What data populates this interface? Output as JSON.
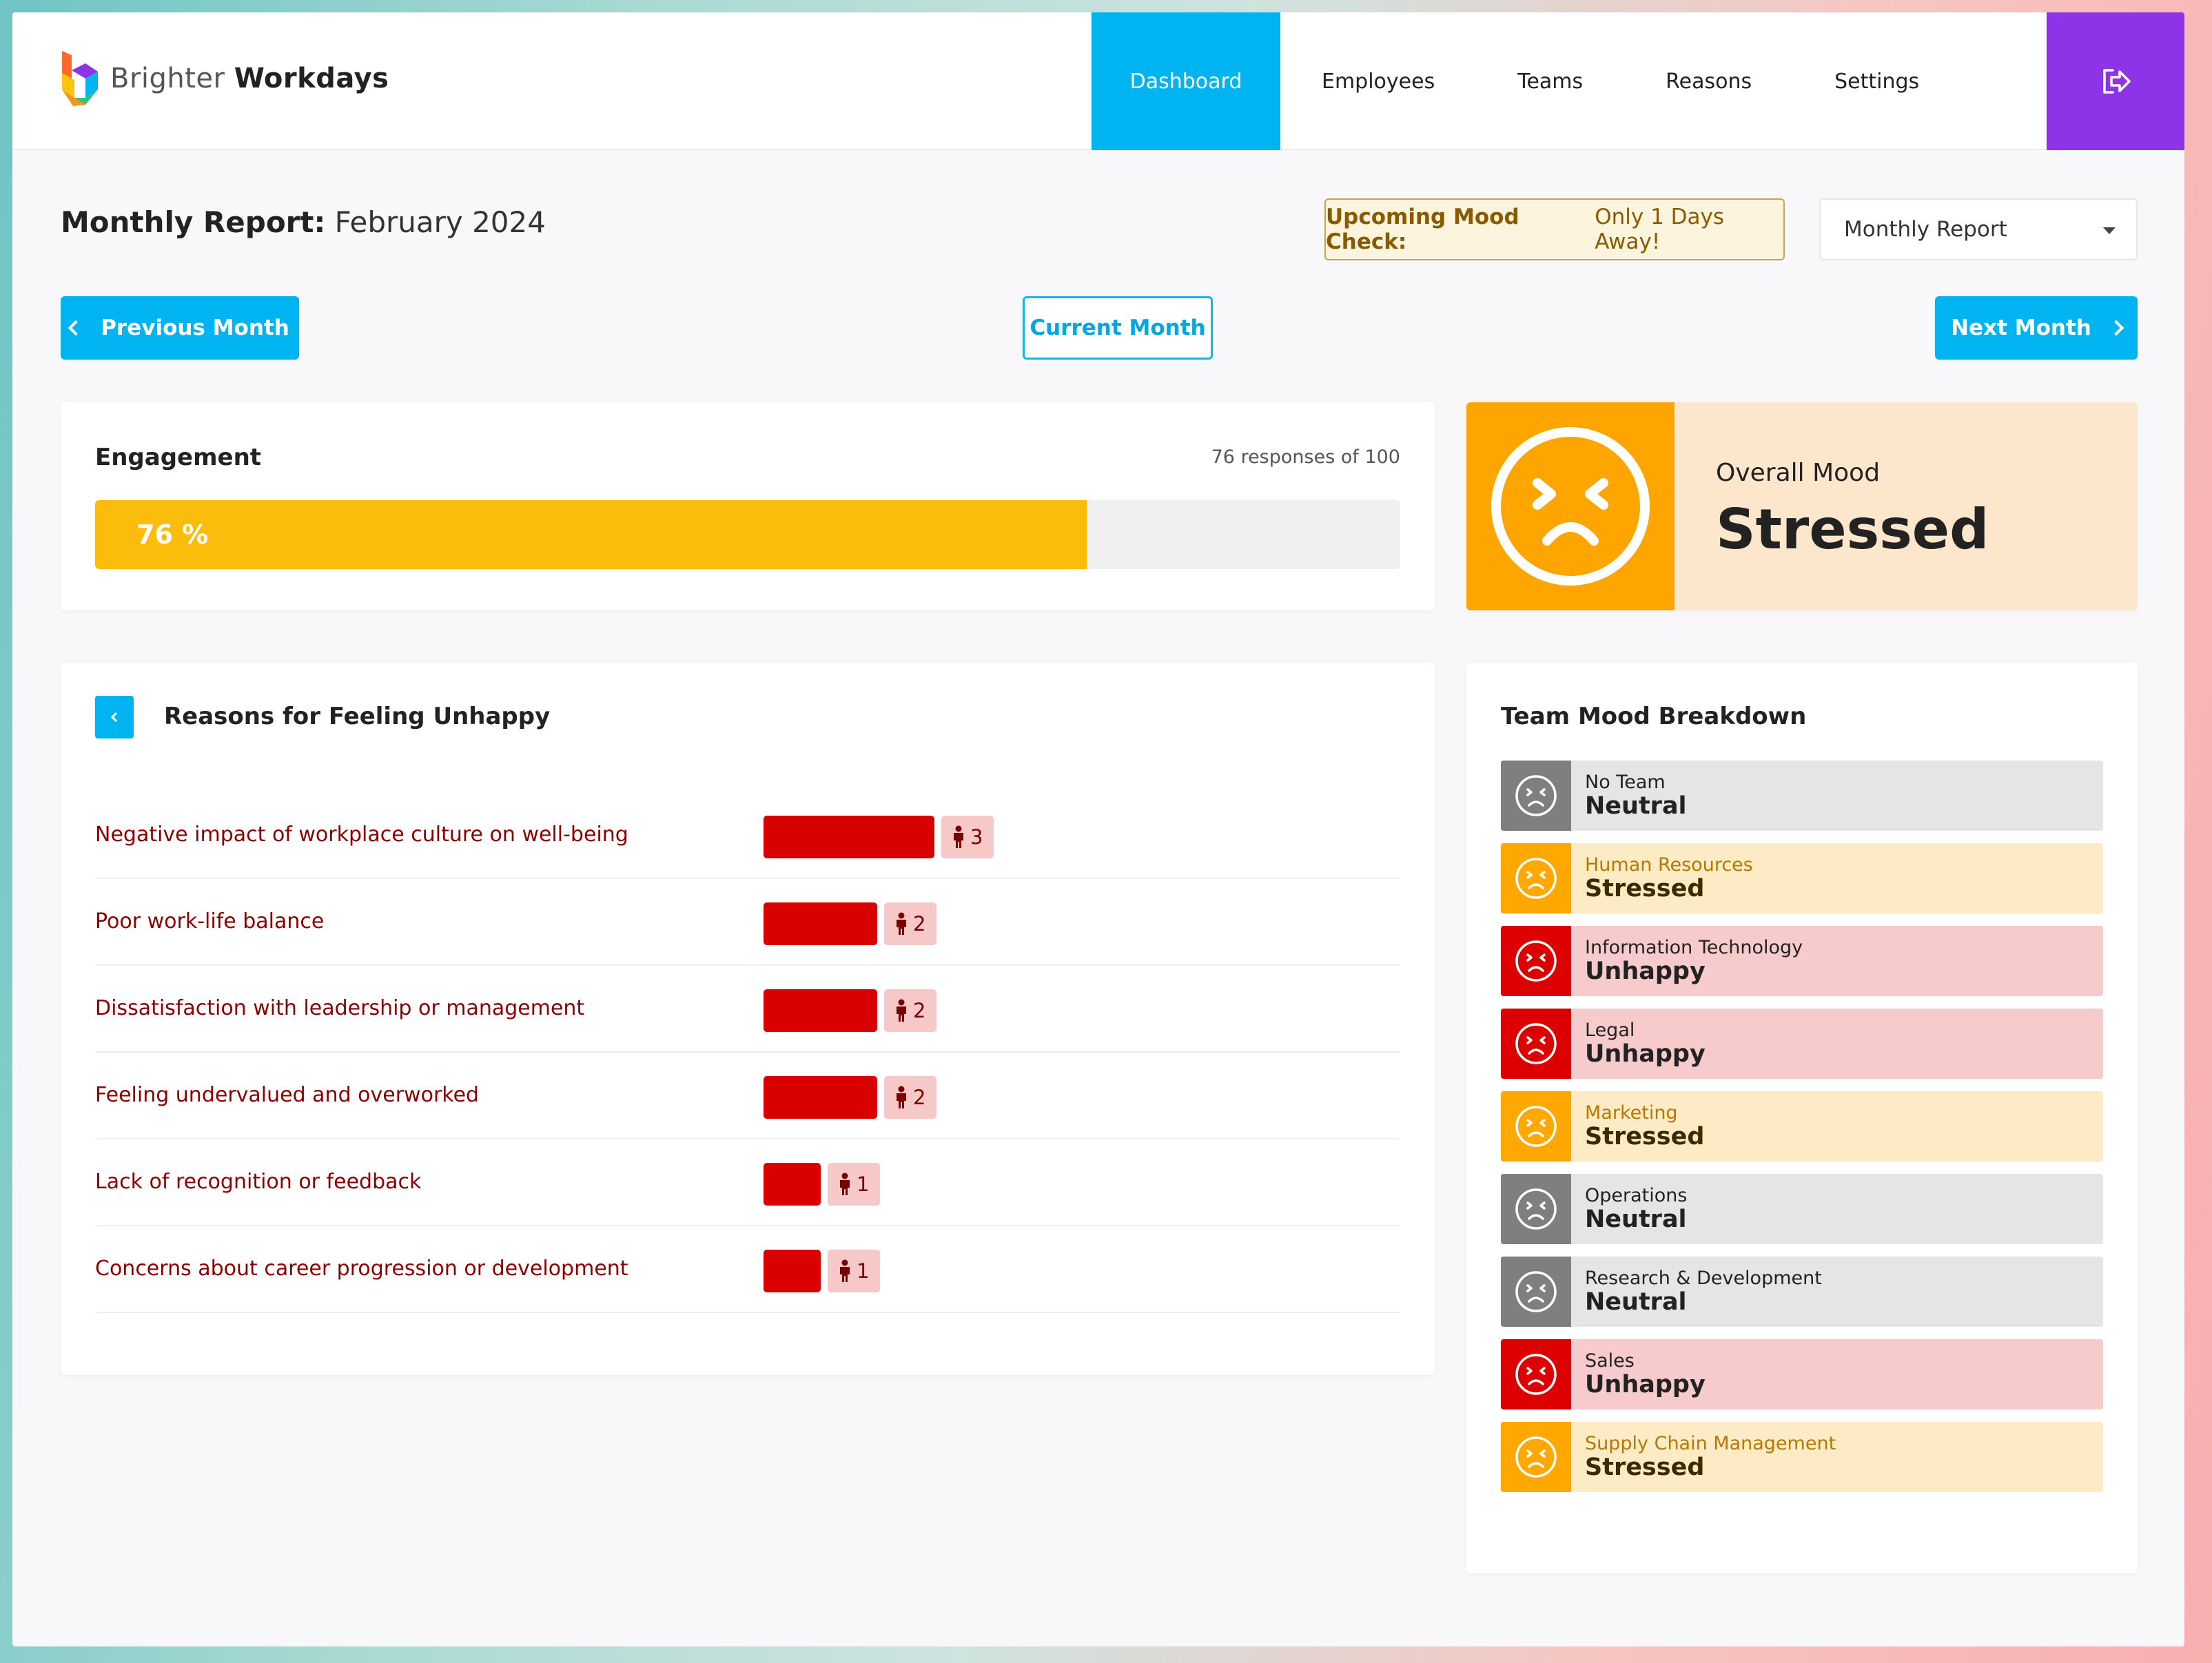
{
  "brand": {
    "name_light": "Brighter",
    "name_bold": "Workdays"
  },
  "nav": {
    "items": [
      {
        "label": "Dashboard",
        "active": true
      },
      {
        "label": "Employees",
        "active": false
      },
      {
        "label": "Teams",
        "active": false
      },
      {
        "label": "Reasons",
        "active": false
      },
      {
        "label": "Settings",
        "active": false
      }
    ],
    "logout_icon": "logout-icon"
  },
  "report": {
    "title_prefix": "Monthly Report:",
    "title_period": "February 2024",
    "notice_bold": "Upcoming Mood Check:",
    "notice_text": "Only 1 Days Away!",
    "select_value": "Monthly Report"
  },
  "buttons": {
    "previous": "Previous Month",
    "current": "Current Month",
    "next": "Next Month"
  },
  "engagement": {
    "title": "Engagement",
    "responses_text": "76 responses of 100",
    "percent_label": "76 %",
    "percent_value": 76
  },
  "overall_mood": {
    "label": "Overall Mood",
    "value": "Stressed"
  },
  "reasons": {
    "title": "Reasons for Feeling Unhappy",
    "items": [
      {
        "label": "Negative impact of workplace culture on well-being",
        "count": 3
      },
      {
        "label": "Poor work-life balance",
        "count": 2
      },
      {
        "label": "Dissatisfaction with leadership or management",
        "count": 2
      },
      {
        "label": "Feeling undervalued and overworked",
        "count": 2
      },
      {
        "label": "Lack of recognition or feedback",
        "count": 1
      },
      {
        "label": "Concerns about career progression or development",
        "count": 1
      }
    ]
  },
  "team_breakdown": {
    "title": "Team Mood Breakdown",
    "teams": [
      {
        "name": "No Team",
        "mood": "Neutral",
        "class": "neutral"
      },
      {
        "name": "Human Resources",
        "mood": "Stressed",
        "class": "stressed"
      },
      {
        "name": "Information Technology",
        "mood": "Unhappy",
        "class": "unhappy"
      },
      {
        "name": "Legal",
        "mood": "Unhappy",
        "class": "unhappy"
      },
      {
        "name": "Marketing",
        "mood": "Stressed",
        "class": "stressed"
      },
      {
        "name": "Operations",
        "mood": "Neutral",
        "class": "neutral"
      },
      {
        "name": "Research & Development",
        "mood": "Neutral",
        "class": "neutral"
      },
      {
        "name": "Sales",
        "mood": "Unhappy",
        "class": "unhappy"
      },
      {
        "name": "Supply Chain Management",
        "mood": "Stressed",
        "class": "stressed"
      }
    ]
  },
  "colors": {
    "accent": "#00b4f2",
    "logout": "#8e34e8",
    "engagement_bar": "#fbbd0b",
    "stressed": "#ffa500",
    "unhappy": "#dc0000",
    "neutral": "#7f7f7f"
  }
}
